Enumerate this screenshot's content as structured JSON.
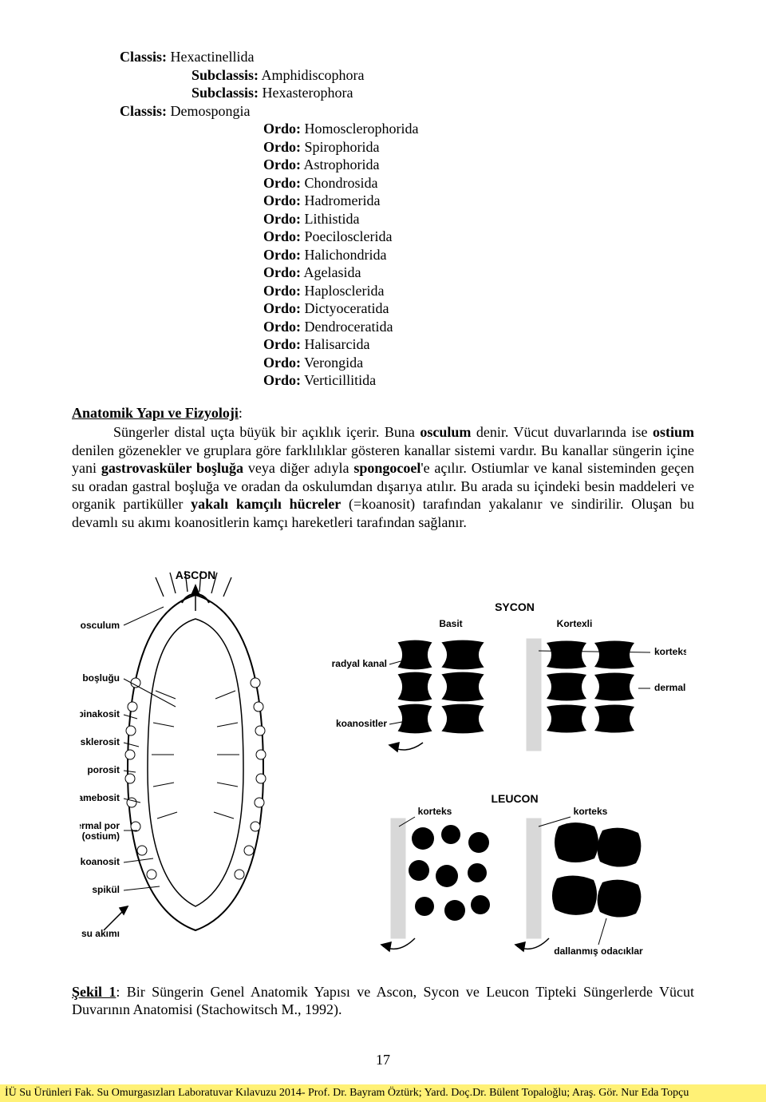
{
  "taxonomy": {
    "lines": [
      {
        "indent": 0,
        "label": "Classis:",
        "value": " Hexactinellida"
      },
      {
        "indent": 1,
        "label": "Subclassis:",
        "value": " Amphidiscophora"
      },
      {
        "indent": 1,
        "label": "Subclassis:",
        "value": " Hexasterophora"
      },
      {
        "indent": 0,
        "label": "Classis:",
        "value": " Demospongia"
      },
      {
        "indent": 2,
        "label": "Ordo:",
        "value": " Homosclerophorida"
      },
      {
        "indent": 2,
        "label": "Ordo:",
        "value": " Spirophorida"
      },
      {
        "indent": 2,
        "label": "Ordo:",
        "value": " Astrophorida"
      },
      {
        "indent": 2,
        "label": "Ordo:",
        "value": " Chondrosida"
      },
      {
        "indent": 2,
        "label": "Ordo:",
        "value": " Hadromerida"
      },
      {
        "indent": 2,
        "label": "Ordo:",
        "value": " Lithistida"
      },
      {
        "indent": 2,
        "label": "Ordo:",
        "value": " Poecilosclerida"
      },
      {
        "indent": 2,
        "label": "Ordo:",
        "value": " Halichondrida"
      },
      {
        "indent": 2,
        "label": "Ordo:",
        "value": " Agelasida"
      },
      {
        "indent": 2,
        "label": "Ordo:",
        "value": " Haplosclerida"
      },
      {
        "indent": 2,
        "label": "Ordo:",
        "value": " Dictyoceratida"
      },
      {
        "indent": 2,
        "label": "Ordo:",
        "value": " Dendroceratida"
      },
      {
        "indent": 2,
        "label": "Ordo:",
        "value": " Halisarcida"
      },
      {
        "indent": 2,
        "label": "Ordo:",
        "value": " Verongida"
      },
      {
        "indent": 2,
        "label": "Ordo:",
        "value": " Verticillitida"
      }
    ]
  },
  "section": {
    "title_span1": "Anatomik Yapı ve Fizyoloji",
    "title_suffix": ":",
    "html": "&nbsp;&nbsp;&nbsp;&nbsp;&nbsp;&nbsp;&nbsp;&nbsp;Süngerler distal uçta büyük bir açıklık içerir. Buna <b>osculum</b> denir. Vücut duvarlarında ise <b>ostium</b> denilen gözenekler ve gruplara göre farklılıklar gösteren kanallar sistemi vardır. Bu kanallar süngerin içine yani <b>gastrovasküler boşluğa</b> veya diğer adıyla <b>spongocoel</b>'e açılır. Ostiumlar ve kanal sisteminden geçen su oradan gastral boşluğa ve oradan da oskulumdan dışarıya atılır. Bu arada su içindeki besin maddeleri ve organik partiküller <b>yakalı kamçılı hücreler</b> (=koanosit) tarafından yakalanır ve sindirilir. Oluşan bu devamlı su akımı koanositlerin kamçı hareketleri tarafından sağlanır."
  },
  "figure": {
    "ascon": {
      "title": "ASCON",
      "labels": [
        "osculum",
        "vücut boşluğu",
        "pinakosit",
        "sklerosit",
        "porosit",
        "amebosit",
        "dermal por\n(ostium)",
        "koanosit",
        "spikül",
        "su akımı"
      ]
    },
    "sycon": {
      "title": "SYCON",
      "labels": [
        "Basit",
        "Kortexli",
        "radyal kanal",
        "koanositler",
        "korteks",
        "dermal por"
      ]
    },
    "leucon": {
      "title": "LEUCON",
      "labels": [
        "korteks",
        "korteks",
        "dallanmış odacıklar"
      ]
    },
    "caption_prefix": "Şekil 1",
    "caption_rest": ": Bir Süngerin Genel Anatomik Yapısı ve Ascon, Sycon ve Leucon Tipteki Süngerlerde Vücut Duvarının Anatomisi (Stachowitsch M., 1992)."
  },
  "page_number": "17",
  "footer": "İÜ Su Ürünleri Fak.  Su Omurgasızları Laboratuvar Kılavuzu 2014- Prof. Dr. Bayram Öztürk; Yard. Doç.Dr. Bülent Topaloğlu; Araş. Gör. Nur Eda Topçu"
}
